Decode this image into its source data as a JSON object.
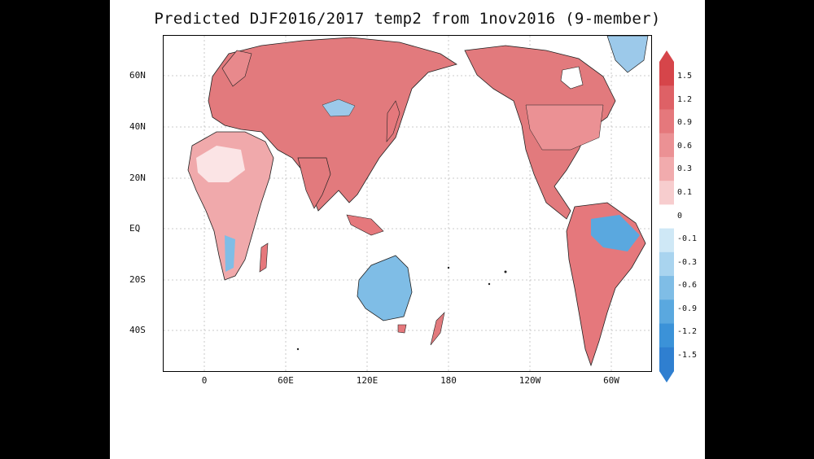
{
  "title": "Predicted DJF2016/2017 temp2 from 1nov2016 (9-member)",
  "lat_labels": [
    "60N",
    "40N",
    "20N",
    "EQ",
    "20S",
    "40S"
  ],
  "lon_labels": [
    "0",
    "60E",
    "120E",
    "180",
    "120W",
    "60W"
  ],
  "colorbar": {
    "labels": [
      "1.5",
      "1.2",
      "0.9",
      "0.6",
      "0.3",
      "0.1",
      "0",
      "-0.1",
      "-0.3",
      "-0.6",
      "-0.9",
      "-1.2",
      "-1.5"
    ],
    "colors": [
      "#d6454a",
      "#de6166",
      "#e5787c",
      "#eb9194",
      "#f1abad",
      "#f7cdce",
      "#ffffff",
      "#cfe8f6",
      "#a9d4ef",
      "#7fbde6",
      "#5aa8df",
      "#3b92d8",
      "#2f7fd0"
    ]
  }
}
